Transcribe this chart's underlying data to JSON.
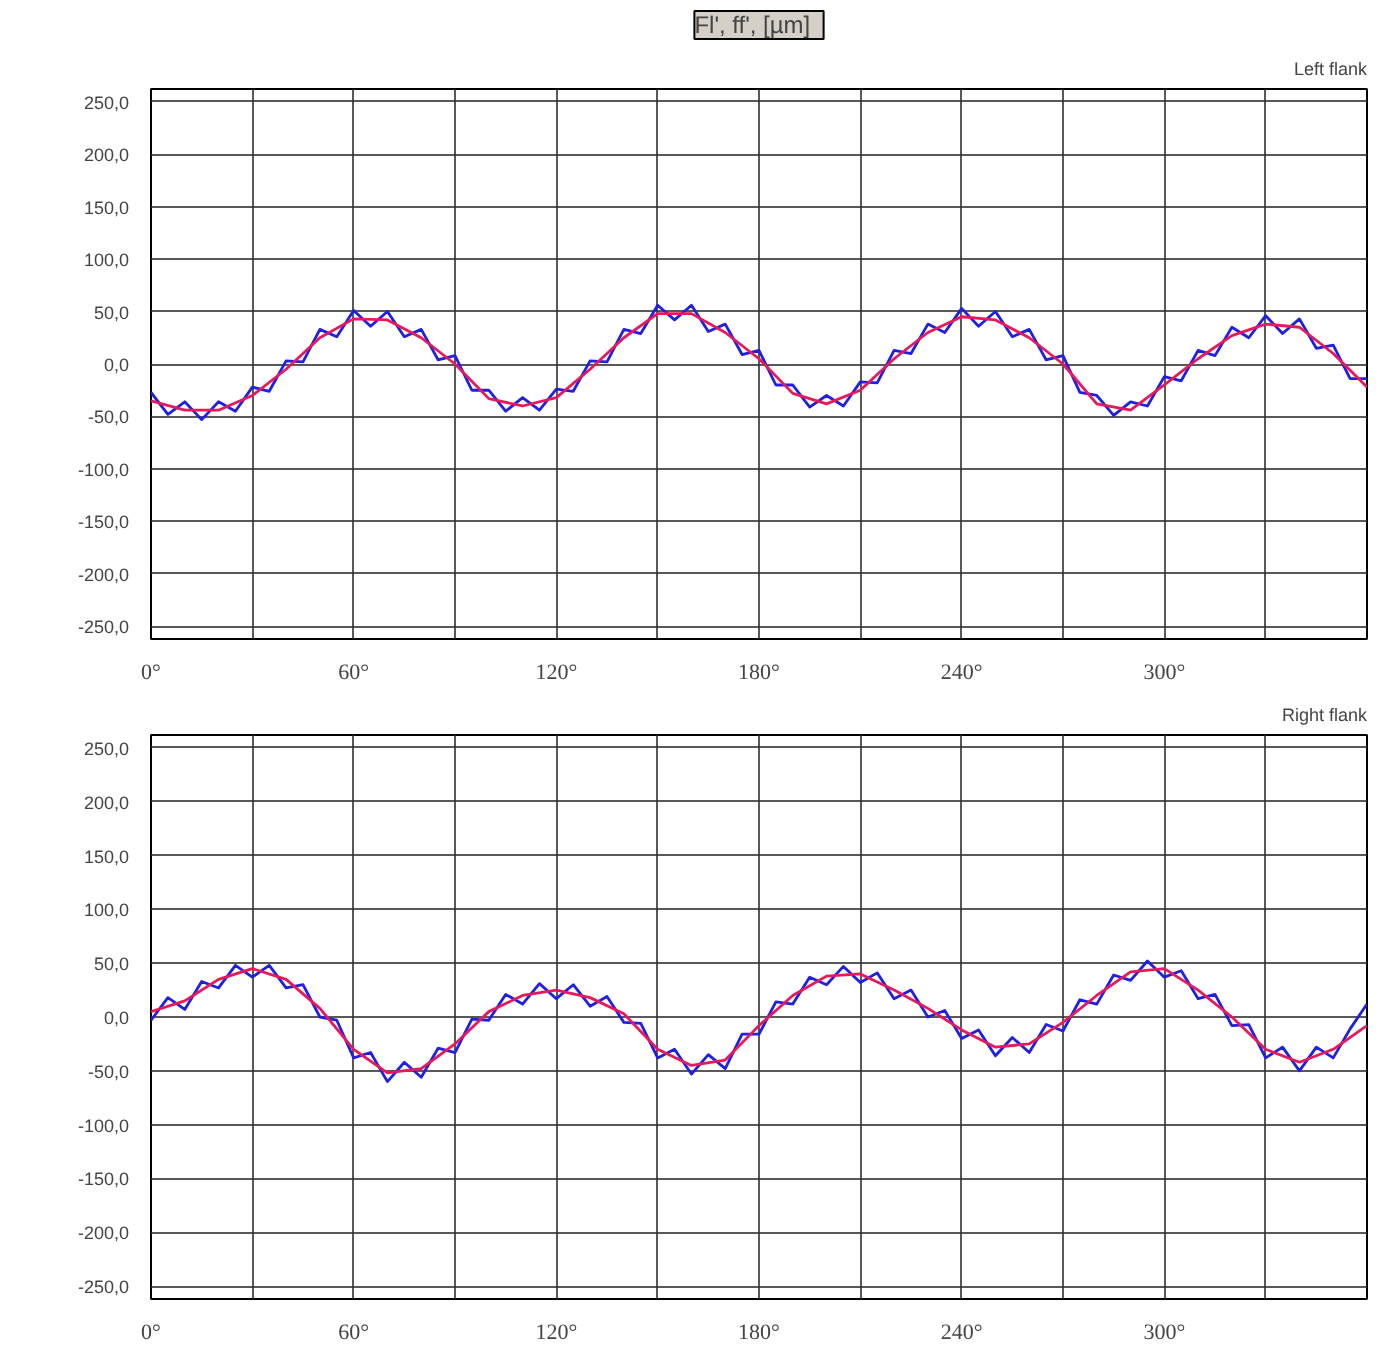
{
  "chart_data": [
    {
      "type": "line",
      "title": "Fl',  ff',  [µm]",
      "subtitle": "Left flank",
      "grid": true,
      "line_style": "solid",
      "xlim": [
        0,
        360
      ],
      "ylim": [
        -262,
        262
      ],
      "xticks": [
        {
          "value": 0,
          "label": "0°"
        },
        {
          "value": 30,
          "label": null
        },
        {
          "value": 60,
          "label": "60°"
        },
        {
          "value": 90,
          "label": null
        },
        {
          "value": 120,
          "label": "120°"
        },
        {
          "value": 150,
          "label": null
        },
        {
          "value": 180,
          "label": "180°"
        },
        {
          "value": 210,
          "label": null
        },
        {
          "value": 240,
          "label": "240°"
        },
        {
          "value": 270,
          "label": null
        },
        {
          "value": 300,
          "label": "300°"
        },
        {
          "value": 330,
          "label": null
        }
      ],
      "yticks": [
        {
          "value": 250,
          "label": "250,0"
        },
        {
          "value": 200,
          "label": "200,0"
        },
        {
          "value": 150,
          "label": "150,0"
        },
        {
          "value": 100,
          "label": "100,0"
        },
        {
          "value": 50,
          "label": "50,0"
        },
        {
          "value": 0,
          "label": "0,0"
        },
        {
          "value": -50,
          "label": "-50,0"
        },
        {
          "value": -100,
          "label": "-100,0"
        },
        {
          "value": -150,
          "label": "-150,0"
        },
        {
          "value": -200,
          "label": "-200,0"
        },
        {
          "value": -250,
          "label": "-250,0"
        }
      ],
      "series": [
        {
          "color": "#1f1fe6",
          "x": [
            0,
            5,
            10,
            15,
            20,
            25,
            30,
            35,
            40,
            45,
            50,
            55,
            60,
            65,
            70,
            75,
            80,
            85,
            90,
            95,
            100,
            105,
            110,
            115,
            120,
            125,
            130,
            135,
            140,
            145,
            150,
            155,
            160,
            165,
            170,
            175,
            180,
            185,
            190,
            195,
            200,
            205,
            210,
            215,
            220,
            225,
            230,
            235,
            240,
            245,
            250,
            255,
            260,
            265,
            270,
            275,
            280,
            285,
            290,
            295,
            300,
            305,
            310,
            315,
            320,
            325,
            330,
            335,
            340,
            345,
            350,
            355,
            360
          ],
          "values": [
            -27,
            -48,
            -36,
            -53,
            -36,
            -45,
            -22,
            -26,
            3,
            2,
            33,
            26,
            51,
            36,
            50,
            26,
            33,
            4,
            8,
            -25,
            -25,
            -45,
            -32,
            -44,
            -24,
            -26,
            3,
            2,
            33,
            29,
            56,
            42,
            56,
            31,
            38,
            9,
            13,
            -20,
            -20,
            -41,
            -30,
            -40,
            -17,
            -18,
            13,
            10,
            38,
            30,
            53,
            36,
            50,
            26,
            33,
            4,
            8,
            -27,
            -30,
            -49,
            -36,
            -40,
            -12,
            -16,
            13,
            8,
            35,
            25,
            46,
            29,
            43,
            15,
            18,
            -14,
            -14
          ]
        },
        {
          "color": "#e8185a",
          "x": [
            0,
            10,
            20,
            30,
            40,
            50,
            60,
            70,
            80,
            90,
            100,
            110,
            120,
            130,
            140,
            150,
            160,
            170,
            180,
            190,
            200,
            210,
            220,
            230,
            240,
            250,
            260,
            270,
            280,
            290,
            300,
            310,
            320,
            330,
            340,
            350,
            360
          ],
          "values": [
            -35,
            -44,
            -44,
            -30,
            -5,
            25,
            43,
            42,
            25,
            0,
            -33,
            -40,
            -32,
            -5,
            25,
            48,
            48,
            30,
            5,
            -28,
            -38,
            -25,
            5,
            30,
            45,
            42,
            25,
            0,
            -38,
            -44,
            -20,
            5,
            27,
            38,
            35,
            10,
            -22
          ]
        }
      ]
    },
    {
      "type": "line",
      "subtitle": "Right flank",
      "grid": true,
      "line_style": "solid",
      "xlim": [
        0,
        360
      ],
      "ylim": [
        -262,
        262
      ],
      "xticks": [
        {
          "value": 0,
          "label": "0°"
        },
        {
          "value": 30,
          "label": null
        },
        {
          "value": 60,
          "label": "60°"
        },
        {
          "value": 90,
          "label": null
        },
        {
          "value": 120,
          "label": "120°"
        },
        {
          "value": 150,
          "label": null
        },
        {
          "value": 180,
          "label": "180°"
        },
        {
          "value": 210,
          "label": null
        },
        {
          "value": 240,
          "label": "240°"
        },
        {
          "value": 270,
          "label": null
        },
        {
          "value": 300,
          "label": "300°"
        },
        {
          "value": 330,
          "label": null
        }
      ],
      "yticks": [
        {
          "value": 250,
          "label": "250,0"
        },
        {
          "value": 200,
          "label": "200,0"
        },
        {
          "value": 150,
          "label": "150,0"
        },
        {
          "value": 100,
          "label": "100,0"
        },
        {
          "value": 50,
          "label": "50,0"
        },
        {
          "value": 0,
          "label": "0,0"
        },
        {
          "value": -50,
          "label": "-50,0"
        },
        {
          "value": -100,
          "label": "-100,0"
        },
        {
          "value": -150,
          "label": "-150,0"
        },
        {
          "value": -200,
          "label": "-200,0"
        },
        {
          "value": -250,
          "label": "-250,0"
        }
      ],
      "series": [
        {
          "color": "#1f1fe6",
          "x": [
            0,
            5,
            10,
            15,
            20,
            25,
            30,
            35,
            40,
            45,
            50,
            55,
            60,
            65,
            70,
            75,
            80,
            85,
            90,
            95,
            100,
            105,
            110,
            115,
            120,
            125,
            130,
            135,
            140,
            145,
            150,
            155,
            160,
            165,
            170,
            175,
            180,
            185,
            190,
            195,
            200,
            205,
            210,
            215,
            220,
            225,
            230,
            235,
            240,
            245,
            250,
            255,
            260,
            265,
            270,
            275,
            280,
            285,
            290,
            295,
            300,
            305,
            310,
            315,
            320,
            325,
            330,
            335,
            340,
            345,
            350,
            355,
            360
          ],
          "values": [
            -3,
            18,
            7,
            33,
            27,
            48,
            37,
            48,
            27,
            30,
            0,
            -3,
            -38,
            -33,
            -60,
            -42,
            -56,
            -29,
            -33,
            -2,
            -3,
            21,
            12,
            31,
            17,
            30,
            10,
            19,
            -5,
            -6,
            -38,
            -30,
            -53,
            -35,
            -48,
            -16,
            -16,
            14,
            12,
            37,
            30,
            47,
            32,
            41,
            17,
            25,
            0,
            6,
            -20,
            -12,
            -36,
            -19,
            -33,
            -7,
            -13,
            16,
            12,
            39,
            34,
            52,
            37,
            43,
            17,
            21,
            -8,
            -7,
            -38,
            -28,
            -50,
            -28,
            -38,
            -11,
            12
          ]
        },
        {
          "color": "#e8185a",
          "x": [
            0,
            10,
            20,
            30,
            40,
            50,
            60,
            70,
            80,
            90,
            100,
            110,
            120,
            130,
            140,
            150,
            160,
            170,
            180,
            190,
            200,
            210,
            220,
            230,
            240,
            250,
            260,
            270,
            280,
            290,
            300,
            310,
            320,
            330,
            340,
            350,
            360
          ],
          "values": [
            5,
            15,
            35,
            45,
            35,
            8,
            -30,
            -52,
            -48,
            -25,
            5,
            20,
            25,
            18,
            3,
            -30,
            -45,
            -40,
            -8,
            20,
            38,
            40,
            25,
            8,
            -12,
            -28,
            -25,
            -5,
            20,
            42,
            45,
            25,
            0,
            -30,
            -42,
            -30,
            -8
          ]
        }
      ]
    }
  ]
}
